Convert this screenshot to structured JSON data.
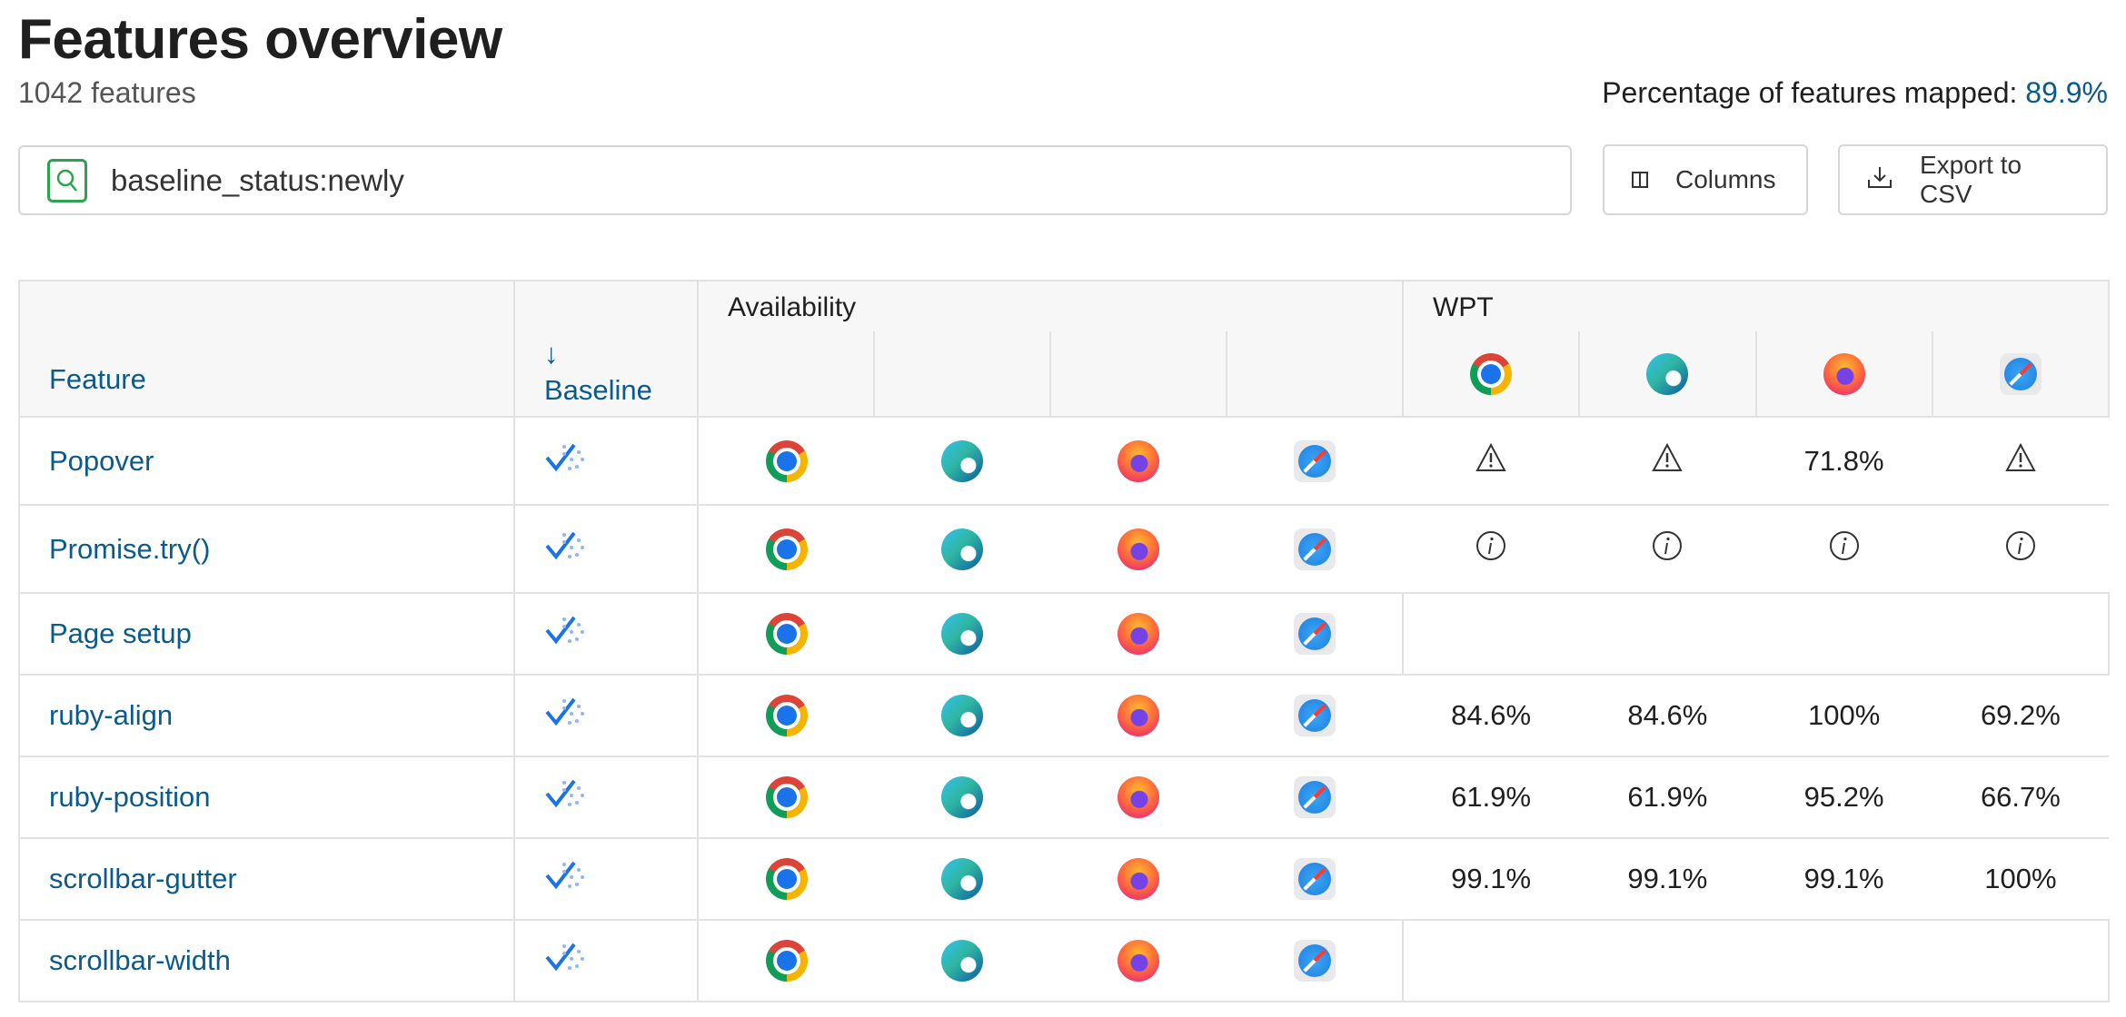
{
  "header": {
    "title": "Features overview",
    "count": "1042 features",
    "mapped_label": "Percentage of features mapped:",
    "mapped_value": "89.9%"
  },
  "search": {
    "value": "baseline_status:newly",
    "icon": "search-icon"
  },
  "toolbar": {
    "columns_label": "Columns",
    "export_label": "Export to CSV"
  },
  "colors": {
    "link": "#0b5a8c",
    "search_accent": "#2aa44f",
    "baseline_check": "#1a73e8"
  },
  "table": {
    "headers": {
      "feature": "Feature",
      "baseline": "Baseline",
      "sort_arrow": "↓",
      "availability": "Availability",
      "wpt": "WPT"
    },
    "browsers": [
      "chrome",
      "edge",
      "firefox",
      "safari"
    ],
    "rows": [
      {
        "feature": "Popover",
        "baseline": "newly",
        "wpt": [
          {
            "type": "warning"
          },
          {
            "type": "warning"
          },
          {
            "type": "value",
            "value": "71.8%"
          },
          {
            "type": "warning"
          }
        ]
      },
      {
        "feature": "Promise.try()",
        "baseline": "newly",
        "wpt": [
          {
            "type": "info"
          },
          {
            "type": "info"
          },
          {
            "type": "info"
          },
          {
            "type": "info"
          }
        ]
      },
      {
        "feature": "Page setup",
        "baseline": "newly",
        "wpt": []
      },
      {
        "feature": "ruby-align",
        "baseline": "newly",
        "wpt": [
          {
            "type": "value",
            "value": "84.6%"
          },
          {
            "type": "value",
            "value": "84.6%"
          },
          {
            "type": "value",
            "value": "100%"
          },
          {
            "type": "value",
            "value": "69.2%"
          }
        ]
      },
      {
        "feature": "ruby-position",
        "baseline": "newly",
        "wpt": [
          {
            "type": "value",
            "value": "61.9%"
          },
          {
            "type": "value",
            "value": "61.9%"
          },
          {
            "type": "value",
            "value": "95.2%"
          },
          {
            "type": "value",
            "value": "66.7%"
          }
        ]
      },
      {
        "feature": "scrollbar-gutter",
        "baseline": "newly",
        "wpt": [
          {
            "type": "value",
            "value": "99.1%"
          },
          {
            "type": "value",
            "value": "99.1%"
          },
          {
            "type": "value",
            "value": "99.1%"
          },
          {
            "type": "value",
            "value": "100%"
          }
        ]
      },
      {
        "feature": "scrollbar-width",
        "baseline": "newly",
        "wpt": []
      }
    ]
  }
}
